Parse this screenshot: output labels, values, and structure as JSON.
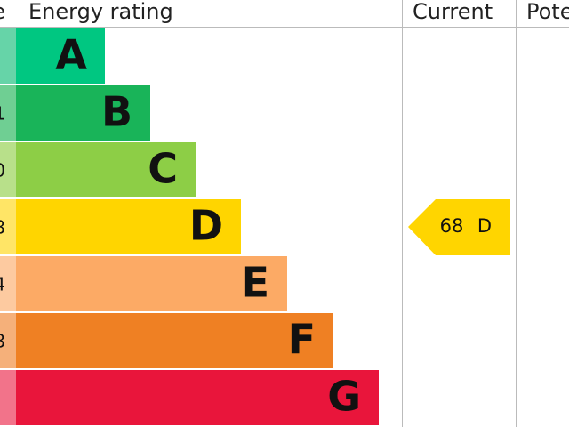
{
  "header": {
    "score": "e",
    "rating": "Energy rating",
    "current": "Current",
    "potential": "Pote"
  },
  "bands": [
    {
      "letter": "A",
      "score": null
    },
    {
      "letter": "B",
      "score": "1"
    },
    {
      "letter": "C",
      "score": "0"
    },
    {
      "letter": "D",
      "score": "8"
    },
    {
      "letter": "E",
      "score": "4"
    },
    {
      "letter": "F",
      "score": "8"
    },
    {
      "letter": "G",
      "score": null
    }
  ],
  "current": {
    "score": 68,
    "rating": "D"
  }
}
